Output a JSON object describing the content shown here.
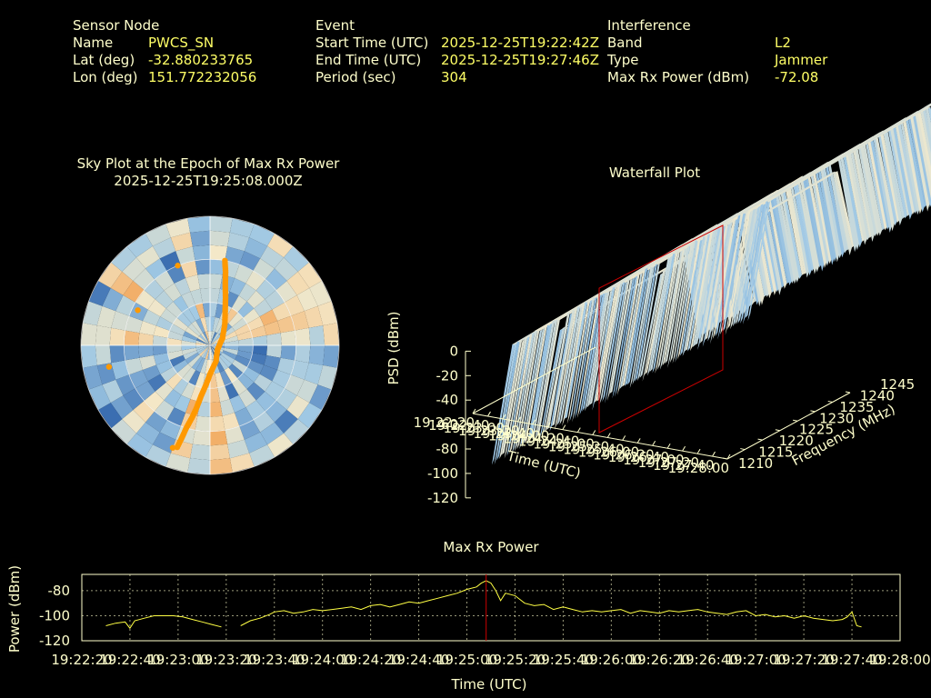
{
  "sensor": {
    "heading": "Sensor Node",
    "name_label": "Name",
    "name_value": "PWCS_SN",
    "lat_label": "Lat (deg)",
    "lat_value": "-32.880233765",
    "lon_label": "Lon (deg)",
    "lon_value": "151.772232056"
  },
  "event": {
    "heading": "Event",
    "start_label": "Start Time (UTC)",
    "start_value": "2025-12-25T19:22:42Z",
    "end_label": "End Time (UTC)",
    "end_value": "2025-12-25T19:27:46Z",
    "period_label": "Period (sec)",
    "period_value": "304"
  },
  "interference": {
    "heading": "Interference",
    "band_label": "Band",
    "band_value": "L2",
    "type_label": "Type",
    "type_value": "Jammer",
    "power_label": "Max Rx Power (dBm)",
    "power_value": "-72.08"
  },
  "colors": {
    "background": "#000000",
    "text": "#ffffcc",
    "value_text": "#ffff66",
    "power_line": "#ffff44",
    "marker": "#cc0000",
    "sky_track": "#ff9900"
  },
  "chart_data": [
    {
      "type": "heatmap",
      "title": "Sky Plot at the Epoch of Max Rx Power",
      "subtitle": "2025-12-25T19:25:08.000Z",
      "projection": "polar",
      "grid": true,
      "elevation_rings_deg": [
        0,
        30,
        60
      ],
      "azimuth_sectors": 36,
      "colormap": [
        "#2a5fa8",
        "#9fc8e4",
        "#f4e8c8",
        "#f2a050"
      ],
      "track": {
        "color": "#ff9900",
        "points_az_el": [
          [
            10,
            30
          ],
          [
            12,
            38
          ],
          [
            14,
            46
          ],
          [
            18,
            55
          ],
          [
            24,
            64
          ],
          [
            35,
            72
          ],
          [
            60,
            80
          ],
          [
            120,
            84
          ],
          [
            160,
            78
          ],
          [
            180,
            70
          ],
          [
            186,
            62
          ],
          [
            190,
            54
          ],
          [
            192,
            46
          ],
          [
            194,
            38
          ],
          [
            196,
            30
          ],
          [
            197,
            22
          ],
          [
            198,
            14
          ]
        ]
      },
      "isolated_points_az_el": [
        [
          296,
          34
        ],
        [
          258,
          18
        ],
        [
          200,
          14
        ],
        [
          338,
          30
        ]
      ]
    },
    {
      "type": "area",
      "title": "Waterfall Plot",
      "zlabel": "PSD (dBm)",
      "xlabel": "Time (UTC)",
      "ylabel": "Frequency (MHz)",
      "z_ticks": [
        0,
        -20,
        -40,
        -60,
        -80,
        -100,
        -120
      ],
      "zlim": [
        -120,
        0
      ],
      "y_ticks": [
        1210,
        1215,
        1220,
        1225,
        1230,
        1235,
        1240,
        1245
      ],
      "ylim": [
        1210,
        1245
      ],
      "x_tick_labels": [
        "19:22:20",
        "19:22:40",
        "19:23:00",
        "19:23:20",
        "19:23:40",
        "19:24:00",
        "19:24:20",
        "19:24:40",
        "19:25:00",
        "19:25:20",
        "19:25:40",
        "19:26:00",
        "19:26:20",
        "19:26:40",
        "19:27:00",
        "19:27:20",
        "19:27:40",
        "19:28:00"
      ],
      "surface_level_dbm": -15,
      "noise_floor_dbm": -90,
      "colormap": [
        "#5590c8",
        "#a6cce6",
        "#f4eacc"
      ],
      "marker_time": "19:25:08"
    },
    {
      "type": "line",
      "title": "Max Rx Power",
      "xlabel": "Time (UTC)",
      "ylabel": "Power (dBm)",
      "ylim": [
        -120,
        -67
      ],
      "y_ticks": [
        -80,
        -100,
        -120
      ],
      "x_ticks": [
        "19:22:20",
        "19:22:40",
        "19:23:00",
        "19:23:20",
        "19:23:40",
        "19:24:00",
        "19:24:20",
        "19:24:40",
        "19:25:00",
        "19:25:20",
        "19:25:40",
        "19:26:00",
        "19:26:20",
        "19:26:40",
        "19:27:00",
        "19:27:20",
        "19:27:40",
        "19:28:00"
      ],
      "x_range_sec": [
        0,
        340
      ],
      "grid": true,
      "marker_x_sec": 168,
      "series": [
        {
          "color": "#ffff44",
          "x": [
            10,
            14,
            18,
            20,
            22,
            26,
            30,
            34,
            38,
            42,
            46,
            50,
            54,
            58,
            62,
            66,
            70,
            74,
            78,
            80,
            84,
            88,
            92,
            96,
            100,
            104,
            108,
            112,
            116,
            120,
            124,
            128,
            132,
            136,
            140,
            144,
            148,
            152,
            156,
            160,
            164,
            166,
            168,
            170,
            172,
            174,
            176,
            180,
            184,
            188,
            192,
            196,
            200,
            204,
            208,
            212,
            216,
            220,
            224,
            228,
            232,
            236,
            240,
            244,
            248,
            252,
            256,
            260,
            264,
            268,
            272,
            276,
            280,
            284,
            288,
            292,
            296,
            300,
            304,
            308,
            312,
            316,
            318,
            320,
            322,
            324
          ],
          "y": [
            -108,
            -106,
            -105,
            -110,
            -104,
            -102,
            -100,
            -100,
            -100,
            -101,
            -103,
            -105,
            -107,
            -109,
            null,
            -108,
            -104,
            -102,
            -99,
            -97,
            -96,
            -98,
            -97,
            -95,
            -96,
            -95,
            -94,
            -93,
            -95,
            -92,
            -91,
            -93,
            -91,
            -89,
            -90,
            -88,
            -86,
            -84,
            -82,
            -79,
            -77,
            -74,
            -72,
            -74,
            -80,
            -88,
            -82,
            -84,
            -90,
            -92,
            -91,
            -95,
            -93,
            -95,
            -97,
            -96,
            -97,
            -96,
            -95,
            -98,
            -96,
            -97,
            -98,
            -96,
            -97,
            -96,
            -95,
            -97,
            -98,
            -99,
            -97,
            -96,
            -100,
            -99,
            -101,
            -100,
            -102,
            -100,
            -102,
            -103,
            -104,
            -103,
            -101,
            -97,
            -108,
            -109
          ]
        }
      ]
    }
  ]
}
